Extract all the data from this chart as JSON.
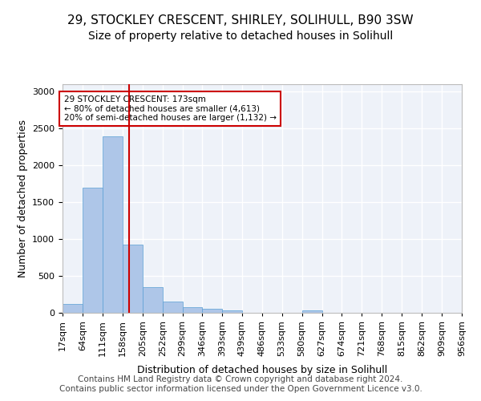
{
  "title1": "29, STOCKLEY CRESCENT, SHIRLEY, SOLIHULL, B90 3SW",
  "title2": "Size of property relative to detached houses in Solihull",
  "xlabel": "Distribution of detached houses by size in Solihull",
  "ylabel": "Number of detached properties",
  "bin_edges": [
    17,
    64,
    111,
    158,
    205,
    252,
    299,
    346,
    393,
    439,
    486,
    533,
    580,
    627,
    674,
    721,
    768,
    815,
    862,
    909,
    956
  ],
  "bar_heights": [
    120,
    1700,
    2390,
    930,
    350,
    155,
    75,
    50,
    35,
    0,
    0,
    0,
    30,
    0,
    0,
    0,
    0,
    0,
    0,
    0
  ],
  "bar_color": "#aec6e8",
  "bar_edgecolor": "#5a9fd4",
  "property_size": 173,
  "vline_color": "#cc0000",
  "annotation_text": "29 STOCKLEY CRESCENT: 173sqm\n← 80% of detached houses are smaller (4,613)\n20% of semi-detached houses are larger (1,132) →",
  "annotation_box_edgecolor": "#cc0000",
  "annotation_box_facecolor": "#ffffff",
  "ylim": [
    0,
    3100
  ],
  "yticks": [
    0,
    500,
    1000,
    1500,
    2000,
    2500,
    3000
  ],
  "background_color": "#eef2f9",
  "grid_color": "#ffffff",
  "footer_text": "Contains HM Land Registry data © Crown copyright and database right 2024.\nContains public sector information licensed under the Open Government Licence v3.0.",
  "title1_fontsize": 11,
  "title2_fontsize": 10,
  "axis_label_fontsize": 9,
  "tick_fontsize": 8,
  "footer_fontsize": 7.5
}
